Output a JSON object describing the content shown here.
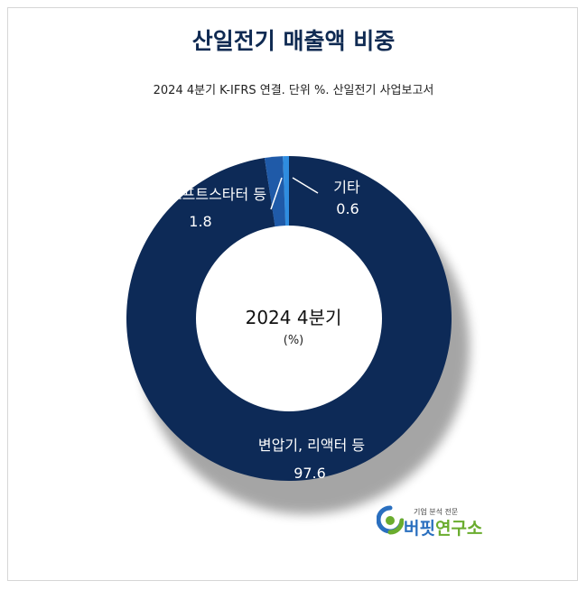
{
  "title": "산일전기 매출액 비중",
  "subtitle": "2024 4분기 K-IFRS 연결. 단위 %. 산일전기 사업보고서",
  "center": {
    "line1": "2024 4분기",
    "line2": "(%)"
  },
  "chart_data": {
    "type": "pie",
    "variant": "donut",
    "title": "산일전기 매출액 비중",
    "subtitle": "2024 4분기 K-IFRS 연결. 단위 %. 산일전기 사업보고서",
    "unit": "%",
    "series": [
      {
        "name": "변압기, 리액터 등",
        "value": 97.6,
        "label": "97.6",
        "color": "#0d2a57"
      },
      {
        "name": "소프트스타터 등",
        "value": 1.8,
        "label": "1.8",
        "color": "#1f5aa8"
      },
      {
        "name": "기타",
        "value": 0.6,
        "label": "0.6",
        "color": "#2f8de0"
      }
    ]
  },
  "logo": {
    "small": "기업 분석 전문",
    "blue": "버핏",
    "green": "연구소",
    "blue_color": "#2a6fbf",
    "green_color": "#6aac2e"
  }
}
